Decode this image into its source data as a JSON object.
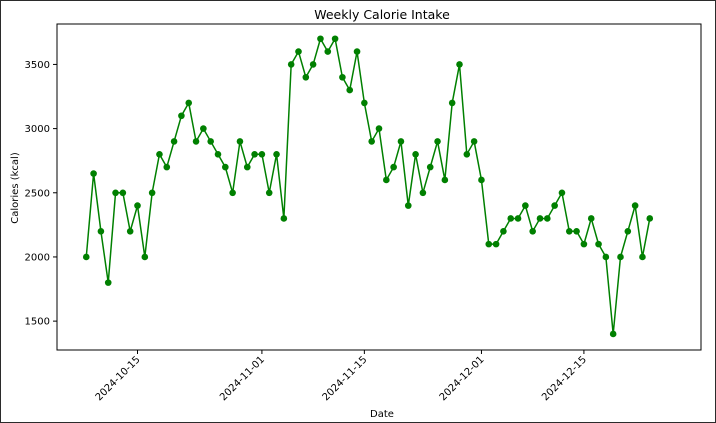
{
  "chart_data": {
    "type": "line",
    "title": "Weekly Calorie Intake",
    "xlabel": "Date",
    "ylabel": "Calories (kcal)",
    "x_ticks": [
      "2024-10-15",
      "2024-11-01",
      "2024-11-15",
      "2024-12-01",
      "2024-12-15"
    ],
    "y_ticks": [
      1500,
      2000,
      2500,
      3000,
      3500
    ],
    "xlim": [
      "2024-10-04",
      "2024-12-31"
    ],
    "ylim": [
      1275,
      3815
    ],
    "grid": false,
    "colors": {
      "line": "#008000",
      "marker": "#008000"
    },
    "series": [
      {
        "x": [
          "2024-10-08",
          "2024-10-09",
          "2024-10-10",
          "2024-10-11",
          "2024-10-12",
          "2024-10-13",
          "2024-10-14",
          "2024-10-15",
          "2024-10-16",
          "2024-10-17",
          "2024-10-18",
          "2024-10-19",
          "2024-10-20",
          "2024-10-21",
          "2024-10-22",
          "2024-10-23",
          "2024-10-24",
          "2024-10-25",
          "2024-10-26",
          "2024-10-27",
          "2024-10-28",
          "2024-10-29",
          "2024-10-30",
          "2024-10-31",
          "2024-11-01",
          "2024-11-02",
          "2024-11-03",
          "2024-11-04",
          "2024-11-05",
          "2024-11-06",
          "2024-11-07",
          "2024-11-08",
          "2024-11-09",
          "2024-11-10",
          "2024-11-11",
          "2024-11-12",
          "2024-11-13",
          "2024-11-14",
          "2024-11-15",
          "2024-11-16",
          "2024-11-17",
          "2024-11-18",
          "2024-11-19",
          "2024-11-20",
          "2024-11-21",
          "2024-11-22",
          "2024-11-23",
          "2024-11-24",
          "2024-11-25",
          "2024-11-26",
          "2024-11-27",
          "2024-11-28",
          "2024-11-29",
          "2024-11-30",
          "2024-12-01",
          "2024-12-02",
          "2024-12-03",
          "2024-12-04",
          "2024-12-05",
          "2024-12-06",
          "2024-12-07",
          "2024-12-08",
          "2024-12-09",
          "2024-12-10",
          "2024-12-11",
          "2024-12-12",
          "2024-12-13",
          "2024-12-14",
          "2024-12-15",
          "2024-12-16",
          "2024-12-17",
          "2024-12-18",
          "2024-12-19",
          "2024-12-20",
          "2024-12-21",
          "2024-12-22",
          "2024-12-23",
          "2024-12-24"
        ],
        "y": [
          2000,
          2650,
          2200,
          1800,
          2500,
          2500,
          2200,
          2400,
          2000,
          2500,
          2800,
          2700,
          2900,
          3100,
          3200,
          2900,
          3000,
          2900,
          2800,
          2700,
          2500,
          2900,
          2700,
          2800,
          2800,
          2500,
          2800,
          2300,
          3500,
          3600,
          3400,
          3500,
          3700,
          3600,
          3700,
          3400,
          3300,
          3600,
          3200,
          2900,
          3000,
          2600,
          2700,
          2900,
          2400,
          2800,
          2500,
          2700,
          2900,
          2600,
          3200,
          3500,
          2800,
          2900,
          2600,
          2100,
          2100,
          2200,
          2300,
          2300,
          2400,
          2200,
          2300,
          2300,
          2400,
          2500,
          2200,
          2200,
          2100,
          2300,
          2100,
          2000,
          1400,
          2000,
          2200,
          2400,
          2000,
          2300
        ]
      }
    ]
  }
}
